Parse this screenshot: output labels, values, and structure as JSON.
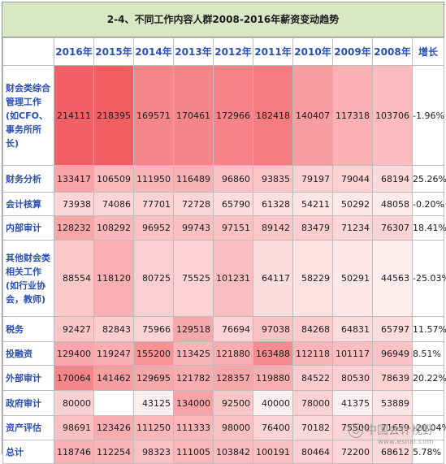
{
  "title": "2-4、不同工作内容人群2008-2016年薪资变动趋势",
  "columns": [
    "2016年",
    "2015年",
    "2014年",
    "2013年",
    "2012年",
    "2011年",
    "2010年",
    "2009年",
    "2008年",
    "增长"
  ],
  "rows": [
    {
      "label": "财会类综合管理工作(如CFO、事务所所长)",
      "values": [
        "214111",
        "218395",
        "169571",
        "170461",
        "172966",
        "182418",
        "140407",
        "117318",
        "103706"
      ],
      "growth": "-1.96%"
    },
    {
      "label": "财务分析",
      "values": [
        "133417",
        "106509",
        "111950",
        "116489",
        "96860",
        "93835",
        "79197",
        "79044",
        "68194"
      ],
      "growth": "25.26%"
    },
    {
      "label": "会计核算",
      "values": [
        "73938",
        "74086",
        "77701",
        "72728",
        "65790",
        "61328",
        "54211",
        "50292",
        "48058"
      ],
      "growth": "-0.20%"
    },
    {
      "label": "内部审计",
      "values": [
        "128232",
        "108292",
        "96952",
        "99743",
        "97151",
        "89142",
        "83479",
        "71234",
        "76307"
      ],
      "growth": "18.41%"
    },
    {
      "label": "其他财会类相关工作(如行业协会，教师)",
      "values": [
        "88554",
        "118120",
        "80725",
        "75525",
        "101231",
        "64117",
        "58229",
        "50291",
        "44563"
      ],
      "growth": "-25.03%"
    },
    {
      "label": "税务",
      "values": [
        "92427",
        "82843",
        "75966",
        "129518",
        "76694",
        "97038",
        "84268",
        "64831",
        "65797"
      ],
      "growth": "11.57%"
    },
    {
      "label": "投融资",
      "values": [
        "129400",
        "119247",
        "155200",
        "113425",
        "121880",
        "163488",
        "112118",
        "101117",
        "96949"
      ],
      "growth": "8.51%"
    },
    {
      "label": "外部审计",
      "values": [
        "170064",
        "141462",
        "129695",
        "121782",
        "128357",
        "119880",
        "84522",
        "80530",
        "78639"
      ],
      "growth": "20.22%"
    },
    {
      "label": "政府审计",
      "values": [
        "80000",
        "",
        "43125",
        "134000",
        "92500",
        "40000",
        "78000",
        "41375",
        "53889"
      ],
      "growth": ""
    },
    {
      "label": "资产评估",
      "values": [
        "98691",
        "123426",
        "111250",
        "111333",
        "98000",
        "76400",
        "70182",
        "75500",
        "71659"
      ],
      "growth": "-20.04%"
    },
    {
      "label": "总计",
      "values": [
        "118746",
        "112254",
        "98323",
        "111005",
        "103842",
        "100191",
        "80464",
        "72200",
        "68612"
      ],
      "growth": "5.78%"
    }
  ],
  "watermark": {
    "name": "中国会计视野",
    "url": "www.esnai.com"
  }
}
